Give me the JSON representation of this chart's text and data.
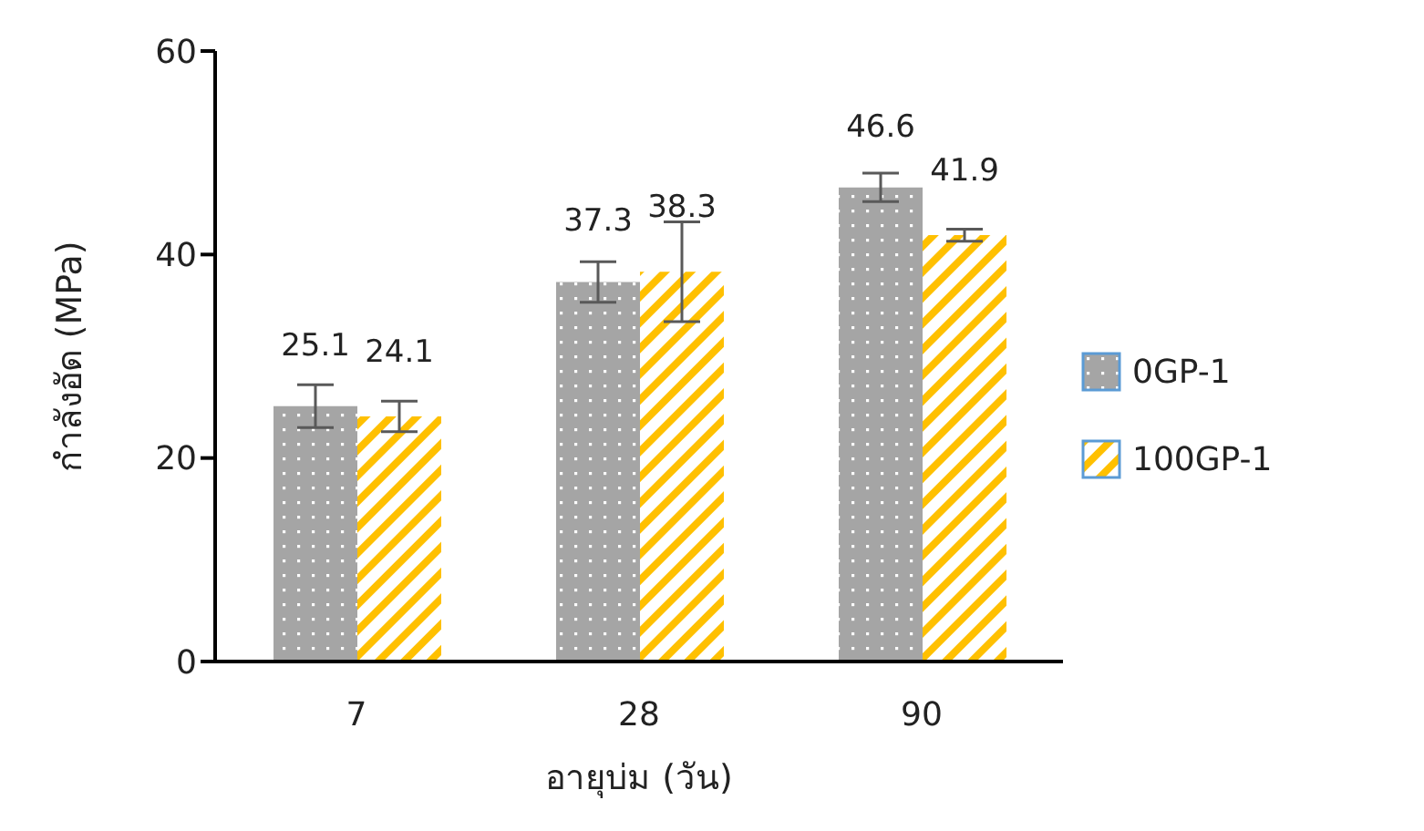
{
  "chart_data": {
    "type": "bar",
    "xlabel": "อายุบ่ม (วัน)",
    "ylabel": "กำลังอัด (MPa)",
    "categories": [
      "7",
      "28",
      "90"
    ],
    "series": [
      {
        "name": "0GP-1",
        "color": "#a5a5a5",
        "values": [
          25.1,
          37.3,
          46.6
        ],
        "errors": [
          2.1,
          2,
          1.4
        ]
      },
      {
        "name": "100GP-1",
        "color": "#ffc000",
        "values": [
          24.1,
          38.3,
          41.9
        ],
        "errors": [
          1.5,
          4.9,
          0.6
        ]
      }
    ],
    "ylim": [
      0,
      60
    ],
    "yticks": [
      0,
      20,
      40,
      60
    ],
    "legend": "right",
    "data_labels": true
  }
}
